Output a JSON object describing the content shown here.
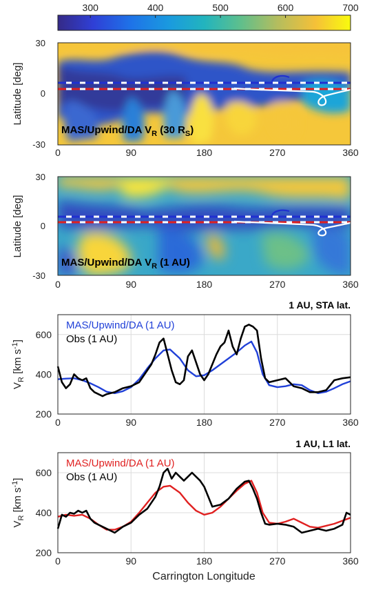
{
  "colorbar": {
    "ticks": [
      "300",
      "400",
      "500",
      "600",
      "700"
    ],
    "tick_values": [
      300,
      400,
      500,
      600,
      700
    ],
    "range": [
      250,
      700
    ]
  },
  "x_ticks": [
    "0",
    "90",
    "180",
    "270",
    "360"
  ],
  "chart_data": [
    {
      "type": "heatmap",
      "ylabel": "Latitude [deg]",
      "ylabel_sub": "",
      "label_main": "MAS/Upwind/DA V",
      "label_sub": "R",
      "label_suffix": " (30 R",
      "label_sub2": "S",
      "label_end": ")",
      "xlim": [
        0,
        360
      ],
      "ylim": [
        -30,
        30
      ],
      "xticks": [
        "0",
        "90",
        "180",
        "270",
        "360"
      ],
      "yticks": [
        "30",
        "0",
        "-30"
      ],
      "colorbar_range": [
        250,
        700
      ],
      "field_description": "solar wind radial speed, slow band near equator",
      "trajectory_lines": [
        {
          "name": "",
          "color": "#2030d0",
          "lat": 5
        },
        {
          "name": "",
          "color": "#e02020",
          "lat": 2
        }
      ]
    },
    {
      "type": "heatmap",
      "ylabel": "Latitude [deg]",
      "label_main": "MAS/Upwind/DA V",
      "label_sub": "R",
      "label_suffix": " (1 AU)",
      "label_sub2": "",
      "label_end": "",
      "xlim": [
        0,
        360
      ],
      "ylim": [
        -30,
        30
      ],
      "xticks": [
        "0",
        "90",
        "180",
        "270",
        "360"
      ],
      "yticks": [
        "30",
        "0",
        "-30"
      ],
      "colorbar_range": [
        250,
        700
      ]
    },
    {
      "type": "line",
      "title": "1 AU, STA lat.",
      "ylabel_main": "V",
      "ylabel_sub": "R",
      "ylabel_unit": " [km s",
      "ylabel_sup": "-1",
      "ylabel_end": "]",
      "xlim": [
        0,
        360
      ],
      "ylim": [
        200,
        700
      ],
      "xticks": [
        "0",
        "90",
        "180",
        "270",
        "360"
      ],
      "yticks": [
        "200",
        "400",
        "600"
      ],
      "grid": true,
      "legend": "top-left",
      "series": [
        {
          "name": "MAS/Upwind/DA (1 AU)",
          "color": "#2040d8",
          "x": [
            0,
            10,
            20,
            30,
            40,
            50,
            60,
            70,
            80,
            90,
            100,
            110,
            120,
            130,
            138,
            150,
            160,
            170,
            180,
            190,
            200,
            210,
            220,
            230,
            238,
            245,
            252,
            260,
            270,
            280,
            290,
            300,
            310,
            320,
            330,
            340,
            350,
            360
          ],
          "y": [
            375,
            378,
            380,
            370,
            355,
            335,
            312,
            305,
            315,
            335,
            375,
            430,
            480,
            520,
            525,
            480,
            420,
            390,
            395,
            420,
            450,
            480,
            510,
            545,
            565,
            510,
            400,
            345,
            335,
            340,
            350,
            345,
            320,
            305,
            312,
            330,
            350,
            365
          ]
        },
        {
          "name": "Obs (1 AU)",
          "color": "#000000",
          "x": [
            0,
            5,
            10,
            15,
            20,
            25,
            30,
            35,
            40,
            45,
            50,
            55,
            60,
            70,
            80,
            90,
            100,
            110,
            115,
            120,
            125,
            130,
            135,
            140,
            145,
            150,
            155,
            160,
            165,
            170,
            175,
            180,
            185,
            190,
            195,
            200,
            205,
            210,
            215,
            220,
            225,
            230,
            235,
            240,
            245,
            250,
            255,
            260,
            270,
            280,
            290,
            300,
            310,
            320,
            330,
            340,
            350,
            360
          ],
          "y": [
            440,
            360,
            330,
            350,
            400,
            380,
            370,
            380,
            330,
            310,
            300,
            290,
            300,
            310,
            330,
            340,
            360,
            420,
            450,
            500,
            560,
            580,
            500,
            420,
            360,
            350,
            370,
            490,
            520,
            460,
            400,
            370,
            400,
            450,
            500,
            540,
            560,
            620,
            540,
            500,
            580,
            640,
            650,
            640,
            620,
            480,
            380,
            360,
            370,
            380,
            340,
            330,
            310,
            310,
            320,
            370,
            380,
            385
          ]
        }
      ]
    },
    {
      "type": "line",
      "title": "1 AU, L1 lat.",
      "ylabel_main": "V",
      "ylabel_sub": "R",
      "ylabel_unit": " [km s",
      "ylabel_sup": "-1",
      "ylabel_end": "]",
      "xlabel": "Carrington Longitude",
      "xlim": [
        0,
        360
      ],
      "ylim": [
        200,
        700
      ],
      "xticks": [
        "0",
        "90",
        "180",
        "270",
        "360"
      ],
      "yticks": [
        "200",
        "400",
        "600"
      ],
      "grid": true,
      "legend": "top-left",
      "series": [
        {
          "name": "MAS/Upwind/DA (1 AU)",
          "color": "#e02020",
          "x": [
            0,
            10,
            20,
            30,
            40,
            50,
            60,
            70,
            80,
            90,
            100,
            110,
            120,
            130,
            138,
            150,
            160,
            170,
            180,
            190,
            200,
            210,
            220,
            230,
            238,
            245,
            252,
            260,
            270,
            280,
            290,
            300,
            310,
            320,
            330,
            340,
            350,
            360
          ],
          "y": [
            380,
            390,
            385,
            390,
            370,
            340,
            315,
            315,
            330,
            355,
            400,
            450,
            500,
            530,
            535,
            500,
            450,
            410,
            390,
            400,
            430,
            470,
            510,
            545,
            560,
            500,
            400,
            350,
            345,
            355,
            370,
            350,
            330,
            325,
            335,
            345,
            360,
            375
          ]
        },
        {
          "name": "Obs (1 AU)",
          "color": "#000000",
          "x": [
            0,
            5,
            10,
            15,
            20,
            25,
            30,
            35,
            40,
            45,
            50,
            60,
            70,
            80,
            90,
            100,
            110,
            120,
            125,
            130,
            135,
            140,
            145,
            150,
            155,
            160,
            165,
            170,
            175,
            180,
            185,
            190,
            200,
            210,
            220,
            230,
            235,
            240,
            245,
            250,
            255,
            260,
            270,
            280,
            290,
            300,
            310,
            320,
            330,
            340,
            350,
            355,
            360
          ],
          "y": [
            320,
            390,
            380,
            400,
            395,
            410,
            400,
            410,
            370,
            350,
            340,
            320,
            300,
            330,
            350,
            390,
            420,
            480,
            530,
            600,
            620,
            570,
            600,
            580,
            560,
            580,
            600,
            580,
            560,
            530,
            480,
            430,
            440,
            470,
            520,
            555,
            560,
            520,
            470,
            400,
            345,
            340,
            345,
            340,
            330,
            300,
            310,
            320,
            310,
            320,
            340,
            400,
            390
          ]
        }
      ]
    }
  ]
}
